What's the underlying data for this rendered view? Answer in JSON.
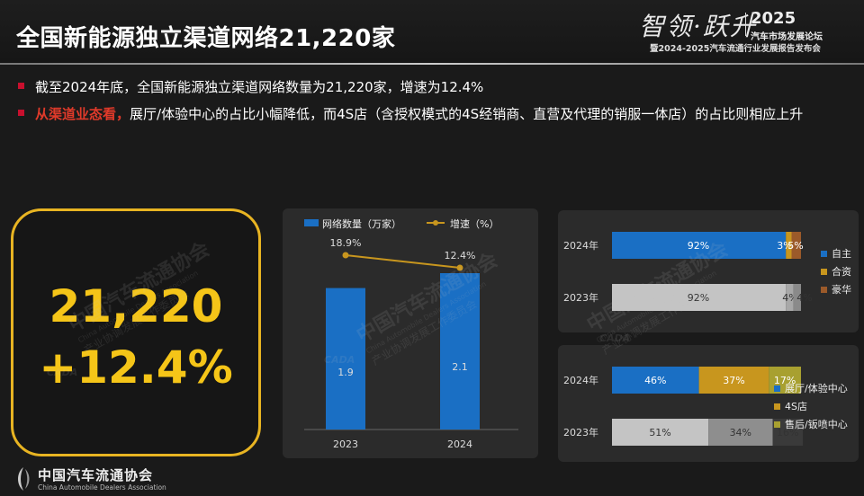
{
  "header": {
    "title": "全国新能源独立渠道网络21,220家",
    "logo": {
      "calligraphy": "智领·跃升",
      "year": "2025",
      "line1": "汽车市场发展论坛",
      "line2": "暨2024-2025汽车流通行业发展报告发布会"
    }
  },
  "bullets": [
    {
      "highlight": "",
      "text": "截至2024年底，全国新能源独立渠道网络数量为21,220家，增速为12.4%"
    },
    {
      "highlight": "从渠道业态看，",
      "text": "展厅/体验中心的占比小幅降低，而4S店（含授权模式的4S经销商、直营及代理的销服一体店）的占比则相应上升"
    }
  ],
  "kpi": {
    "line1": "21,220",
    "line2": "+12.4%"
  },
  "watermark": {
    "cn": "中国汽车流通协会",
    "en": "China Automobile Dealers Association",
    "sub": "产业协调发展工作委员会",
    "abbr": "CADA"
  },
  "footer": {
    "name": "中国汽车流通协会",
    "en": "China Automobile Dealers Association"
  },
  "colors": {
    "blue": "#1a6fc4",
    "gold": "#c8961e",
    "brown": "#9b5a2a",
    "gray": "#bdbdbd",
    "olive": "#a8a030",
    "accent": "#f5c518",
    "red": "#c8102e"
  },
  "chart_data": [
    {
      "type": "bar",
      "categories": [
        "2023",
        "2024"
      ],
      "series": [
        {
          "name": "网络数量（万家）",
          "type": "bar",
          "values": [
            1.9,
            2.1
          ]
        },
        {
          "name": "增速（%）",
          "type": "line",
          "values": [
            18.9,
            12.4
          ],
          "labels": [
            "18.9%",
            "12.4%"
          ]
        }
      ],
      "legend_position": "top"
    },
    {
      "type": "bar",
      "stacked": true,
      "orientation": "horizontal",
      "categories": [
        "2024年",
        "2023年"
      ],
      "series": [
        {
          "name": "自主",
          "values": [
            92,
            92
          ],
          "labels": [
            "92%",
            "92%"
          ]
        },
        {
          "name": "合资",
          "values": [
            3,
            4
          ],
          "labels": [
            "3%",
            "4%"
          ]
        },
        {
          "name": "豪华",
          "values": [
            5,
            4
          ],
          "labels": [
            "5%",
            "4%"
          ]
        }
      ],
      "legend_position": "right"
    },
    {
      "type": "bar",
      "stacked": true,
      "orientation": "horizontal",
      "categories": [
        "2024年",
        "2023年"
      ],
      "series": [
        {
          "name": "展厅/体验中心",
          "values": [
            46,
            51
          ],
          "labels": [
            "46%",
            "51%"
          ]
        },
        {
          "name": "4S店",
          "values": [
            37,
            34
          ],
          "labels": [
            "37%",
            "34%"
          ]
        },
        {
          "name": "售后/钣喷中心",
          "values": [
            17,
            16
          ],
          "labels": [
            "17%",
            "16%"
          ]
        }
      ],
      "legend_position": "right"
    }
  ]
}
